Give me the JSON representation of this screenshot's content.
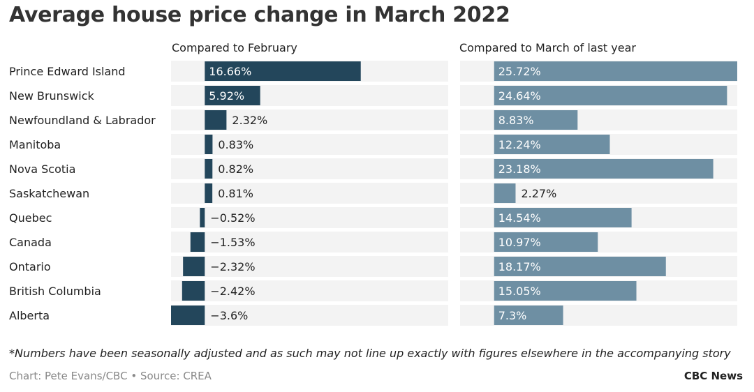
{
  "title": "Average house price change in March 2022",
  "footnote": "*Numbers have been seasonally adjusted and as such may not line up exactly with figures elsewhere in the accompanying story",
  "credit": "Chart: Pete Evans/CBC • Source: CREA",
  "brand": "CBC News",
  "colors": {
    "panel_bg": "#f3f3f3",
    "dark_bar": "#23465b",
    "light_bar": "#6e8fa3",
    "text": "#222222",
    "inside_label": "#ffffff"
  },
  "chart_data": {
    "type": "bar",
    "orientation": "horizontal",
    "categories": [
      "Prince Edward Island",
      "New Brunswick",
      "Newfoundland & Labrador",
      "Manitoba",
      "Nova Scotia",
      "Saskatchewan",
      "Quebec",
      "Canada",
      "Ontario",
      "British Columbia",
      "Alberta"
    ],
    "series": [
      {
        "name": "Compared to February",
        "values": [
          16.66,
          5.92,
          2.32,
          0.83,
          0.82,
          0.81,
          -0.52,
          -1.53,
          -2.32,
          -2.42,
          -3.6
        ],
        "labels": [
          "16.66%",
          "5.92%",
          "2.32%",
          "0.83%",
          "0.82%",
          "0.81%",
          "−0.52%",
          "−1.53%",
          "−2.32%",
          "−2.42%",
          "−3.6%"
        ],
        "xlim": [
          -3.6,
          26
        ]
      },
      {
        "name": "Compared to March of last year",
        "values": [
          25.72,
          24.64,
          8.83,
          12.24,
          23.18,
          2.27,
          14.54,
          10.97,
          18.17,
          15.05,
          7.3
        ],
        "labels": [
          "25.72%",
          "24.64%",
          "8.83%",
          "12.24%",
          "23.18%",
          "2.27%",
          "14.54%",
          "10.97%",
          "18.17%",
          "15.05%",
          "7.3%"
        ],
        "xlim": [
          -3.6,
          25.72
        ]
      }
    ],
    "grid": false,
    "legend": "none"
  }
}
